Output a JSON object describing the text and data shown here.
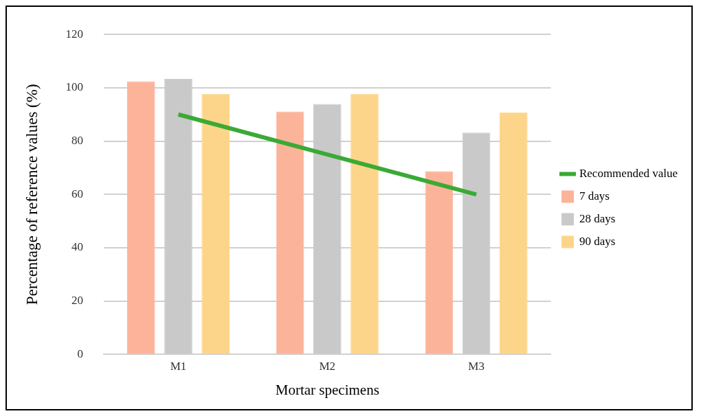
{
  "chart_data": {
    "type": "bar",
    "xlabel": "Mortar specimens",
    "ylabel": "Percentage of reference values (%)",
    "categories": [
      "M1",
      "M2",
      "M3"
    ],
    "series": [
      {
        "name": "7 days",
        "color": "#fbb49a",
        "values": [
          102.4,
          91.1,
          68.7
        ]
      },
      {
        "name": "28 days",
        "color": "#c9c9c9",
        "values": [
          103.3,
          93.9,
          83.2
        ]
      },
      {
        "name": "90 days",
        "color": "#fdd58a",
        "values": [
          97.7,
          97.7,
          90.8
        ]
      },
      {
        "name": "Recommended value",
        "type": "line",
        "color": "#3aaa35",
        "values": [
          90,
          75,
          60
        ]
      }
    ],
    "ylim": [
      0,
      120
    ],
    "yticks": [
      0,
      20,
      40,
      60,
      80,
      100,
      120
    ],
    "grid": "y",
    "legend": "right",
    "marker": "none"
  }
}
